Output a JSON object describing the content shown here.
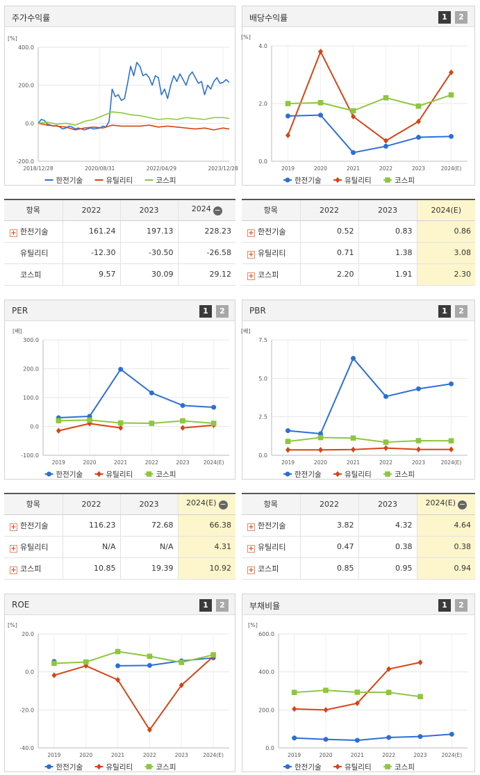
{
  "colors": {
    "kepco": "#2b6fd6",
    "utility": "#d64413",
    "kospi": "#8dc63f"
  },
  "panels": [
    {
      "id": "stock",
      "title": "주가수익률",
      "tabs": []
    },
    {
      "id": "div",
      "title": "배당수익률",
      "tabs": [
        "1",
        "2"
      ]
    },
    {
      "id": "per",
      "title": "PER",
      "tabs": [
        "1",
        "2"
      ]
    },
    {
      "id": "pbr",
      "title": "PBR",
      "tabs": [
        "1",
        "2"
      ]
    },
    {
      "id": "roe",
      "title": "ROE",
      "tabs": [
        "1",
        "2"
      ]
    },
    {
      "id": "debt",
      "title": "부채비율",
      "tabs": [
        "1",
        "2"
      ]
    }
  ],
  "tables": [
    {
      "id": "t_stock",
      "headers": [
        "항목",
        "2022",
        "2023",
        "2024"
      ],
      "minus": "−",
      "rows": [
        {
          "label": "한전기술",
          "plus": true,
          "values": [
            "161.24",
            "197.13",
            "228.23"
          ]
        },
        {
          "label": "유틸리티",
          "plus": false,
          "values": [
            "-12.30",
            "-30.50",
            "-26.58"
          ]
        },
        {
          "label": "코스피",
          "plus": false,
          "values": [
            "9.57",
            "30.09",
            "29.12"
          ]
        }
      ]
    },
    {
      "id": "t_div",
      "headers": [
        "항목",
        "2022",
        "2023",
        "2024(E)"
      ],
      "minus": "",
      "rows": [
        {
          "label": "한전기술",
          "plus": true,
          "values": [
            "0.52",
            "0.83",
            "0.86"
          ]
        },
        {
          "label": "유틸리티",
          "plus": true,
          "values": [
            "0.71",
            "1.38",
            "3.08"
          ]
        },
        {
          "label": "코스피",
          "plus": true,
          "values": [
            "2.20",
            "1.91",
            "2.30"
          ]
        }
      ]
    },
    {
      "id": "t_per",
      "headers": [
        "항목",
        "2022",
        "2023",
        "2024(E)"
      ],
      "minus": "−",
      "rows": [
        {
          "label": "한전기술",
          "plus": true,
          "values": [
            "116.23",
            "72.68",
            "66.38"
          ]
        },
        {
          "label": "유틸리티",
          "plus": true,
          "values": [
            "N/A",
            "N/A",
            "4.31"
          ]
        },
        {
          "label": "코스피",
          "plus": true,
          "values": [
            "10.85",
            "19.39",
            "10.92"
          ]
        }
      ]
    },
    {
      "id": "t_pbr",
      "headers": [
        "항목",
        "2022",
        "2023",
        "2024(E)"
      ],
      "minus": "−",
      "rows": [
        {
          "label": "한전기술",
          "plus": true,
          "values": [
            "3.82",
            "4.32",
            "4.64"
          ]
        },
        {
          "label": "유틸리티",
          "plus": true,
          "values": [
            "0.47",
            "0.38",
            "0.38"
          ]
        },
        {
          "label": "코스피",
          "plus": true,
          "values": [
            "0.85",
            "0.95",
            "0.94"
          ]
        }
      ]
    }
  ],
  "chart_data": [
    {
      "id": "stock",
      "type": "line",
      "title": "주가수익률",
      "unit": "[%]",
      "ylim": [
        -200,
        400
      ],
      "yticks": [
        "400.0",
        "200.0",
        "0.0",
        "-200.0"
      ],
      "ytick_values": [
        400,
        200,
        0,
        -200
      ],
      "xticks": [
        "2018/12/28",
        "2020/08/31",
        "2022/04/29",
        "2023/12/28"
      ],
      "xlim": [
        0,
        60
      ],
      "xtick_positions": [
        0,
        20,
        40,
        60
      ],
      "legend": [
        "한전기술",
        "유틸리티",
        "코스피"
      ],
      "series": [
        {
          "name": "한전기술",
          "x": [
            0,
            1,
            2,
            3,
            4,
            5,
            6,
            7,
            8,
            9,
            10,
            11,
            12,
            13,
            14,
            15,
            16,
            17,
            18,
            19,
            20,
            21,
            22,
            23,
            24,
            25,
            26,
            27,
            28,
            29,
            30,
            31,
            32,
            33,
            34,
            35,
            36,
            37,
            38,
            39,
            40,
            41,
            42,
            43,
            44,
            45,
            46,
            47,
            48,
            49,
            50,
            51,
            52,
            53,
            54,
            55,
            56,
            57,
            58,
            59,
            60,
            61,
            62
          ],
          "values": [
            0,
            20,
            15,
            -5,
            -10,
            -15,
            -12,
            -20,
            -30,
            -25,
            -15,
            -20,
            -30,
            -25,
            -30,
            -35,
            -30,
            -25,
            -30,
            -28,
            -25,
            -15,
            -20,
            10,
            180,
            140,
            150,
            120,
            130,
            210,
            300,
            250,
            320,
            300,
            250,
            260,
            240,
            200,
            250,
            240,
            150,
            180,
            130,
            200,
            250,
            220,
            260,
            230,
            200,
            250,
            270,
            240,
            210,
            220,
            150,
            200,
            180,
            220,
            240,
            210,
            215,
            230,
            215
          ]
        },
        {
          "name": "유틸리티",
          "x": [
            0,
            3,
            6,
            9,
            12,
            15,
            18,
            21,
            24,
            27,
            30,
            33,
            36,
            39,
            42,
            45,
            48,
            51,
            54,
            57,
            60,
            62
          ],
          "values": [
            0,
            -10,
            -15,
            -20,
            -35,
            -25,
            -20,
            -25,
            -10,
            -15,
            -15,
            -15,
            -10,
            -20,
            -15,
            -20,
            -25,
            -30,
            -25,
            -35,
            -25,
            -30
          ]
        },
        {
          "name": "코스피",
          "x": [
            0,
            3,
            6,
            9,
            12,
            15,
            18,
            21,
            24,
            27,
            30,
            33,
            36,
            39,
            42,
            45,
            48,
            51,
            54,
            57,
            60,
            62
          ],
          "values": [
            0,
            5,
            -5,
            0,
            -10,
            10,
            20,
            40,
            60,
            55,
            45,
            40,
            30,
            20,
            25,
            20,
            30,
            25,
            20,
            30,
            30,
            25
          ]
        }
      ]
    },
    {
      "id": "div",
      "type": "line",
      "title": "배당수익률",
      "unit": "[%]",
      "ylim": [
        0,
        4
      ],
      "yticks": [
        "4.0",
        "2.0",
        "0.0"
      ],
      "ytick_values": [
        4,
        2,
        0
      ],
      "categories": [
        "2019",
        "2020",
        "2021",
        "2022",
        "2023",
        "2024(E)"
      ],
      "legend": [
        "한전기술",
        "유틸리티",
        "코스피"
      ],
      "series": [
        {
          "name": "한전기술",
          "values": [
            1.57,
            1.6,
            0.3,
            0.52,
            0.83,
            0.86
          ]
        },
        {
          "name": "유틸리티",
          "values": [
            0.9,
            3.8,
            1.55,
            0.71,
            1.38,
            3.08
          ]
        },
        {
          "name": "코스피",
          "values": [
            2.0,
            2.03,
            1.75,
            2.2,
            1.91,
            2.3
          ]
        }
      ]
    },
    {
      "id": "per",
      "type": "line",
      "title": "PER",
      "unit": "[배]",
      "ylim": [
        -100,
        300
      ],
      "yticks": [
        "300.0",
        "200.0",
        "100.0",
        "0.0",
        "-100.0"
      ],
      "ytick_values": [
        300,
        200,
        100,
        0,
        -100
      ],
      "categories": [
        "2019",
        "2020",
        "2021",
        "2022",
        "2023",
        "2024(E)"
      ],
      "legend": [
        "한전기술",
        "유틸리티",
        "코스피"
      ],
      "series": [
        {
          "name": "한전기술",
          "values": [
            30,
            35,
            198,
            116.23,
            72.68,
            66.38
          ]
        },
        {
          "name": "유틸리티",
          "values": [
            -15,
            10,
            -5,
            null,
            -5,
            4.31
          ]
        },
        {
          "name": "코스피",
          "values": [
            20,
            22,
            12,
            10.85,
            19.39,
            10.92
          ]
        }
      ]
    },
    {
      "id": "pbr",
      "type": "line",
      "title": "PBR",
      "unit": "[배]",
      "ylim": [
        0,
        7.5
      ],
      "yticks": [
        "7.5",
        "5.0",
        "2.5",
        "0.0"
      ],
      "ytick_values": [
        7.5,
        5,
        2.5,
        0
      ],
      "categories": [
        "2019",
        "2020",
        "2021",
        "2022",
        "2023",
        "2024(E)"
      ],
      "legend": [
        "한전기술",
        "유틸리티",
        "코스피"
      ],
      "series": [
        {
          "name": "한전기술",
          "values": [
            1.6,
            1.4,
            6.3,
            3.82,
            4.32,
            4.64
          ]
        },
        {
          "name": "유틸리티",
          "values": [
            0.35,
            0.35,
            0.37,
            0.47,
            0.38,
            0.38
          ]
        },
        {
          "name": "코스피",
          "values": [
            0.9,
            1.15,
            1.12,
            0.85,
            0.95,
            0.94
          ]
        }
      ]
    },
    {
      "id": "roe",
      "type": "line",
      "title": "ROE",
      "unit": "[%]",
      "ylim": [
        -40,
        20
      ],
      "yticks": [
        "20.0",
        "0.0",
        "-20.0",
        "-40.0"
      ],
      "ytick_values": [
        20,
        0,
        -20,
        -40
      ],
      "categories": [
        "2019",
        "2020",
        "2021",
        "2022",
        "2023",
        "2024(E)"
      ],
      "legend": [
        "한전기술",
        "유틸리티",
        "코스피"
      ],
      "series": [
        {
          "name": "한전기술",
          "values": [
            5.5,
            null,
            3.2,
            3.4,
            5.8,
            7.4
          ]
        },
        {
          "name": "유틸리티",
          "values": [
            -1.8,
            3.2,
            -4.2,
            -30.5,
            -7,
            8.1
          ]
        },
        {
          "name": "코스피",
          "values": [
            4.5,
            5.2,
            10.7,
            8.2,
            5,
            9
          ]
        }
      ]
    },
    {
      "id": "debt",
      "type": "line",
      "title": "부채비율",
      "unit": "[%]",
      "ylim": [
        0,
        600
      ],
      "yticks": [
        "600.0",
        "400.0",
        "200.0",
        "0.0"
      ],
      "ytick_values": [
        600,
        400,
        200,
        0
      ],
      "categories": [
        "2019",
        "2020",
        "2021",
        "2022",
        "2023",
        "2024(E)"
      ],
      "legend": [
        "한전기술",
        "유틸리티",
        "코스피"
      ],
      "series": [
        {
          "name": "한전기술",
          "values": [
            52,
            45,
            40,
            55,
            60,
            72
          ]
        },
        {
          "name": "유틸리티",
          "values": [
            205,
            200,
            235,
            415,
            450,
            null
          ]
        },
        {
          "name": "코스피",
          "values": [
            292,
            303,
            293,
            292,
            270,
            null
          ]
        }
      ]
    }
  ]
}
